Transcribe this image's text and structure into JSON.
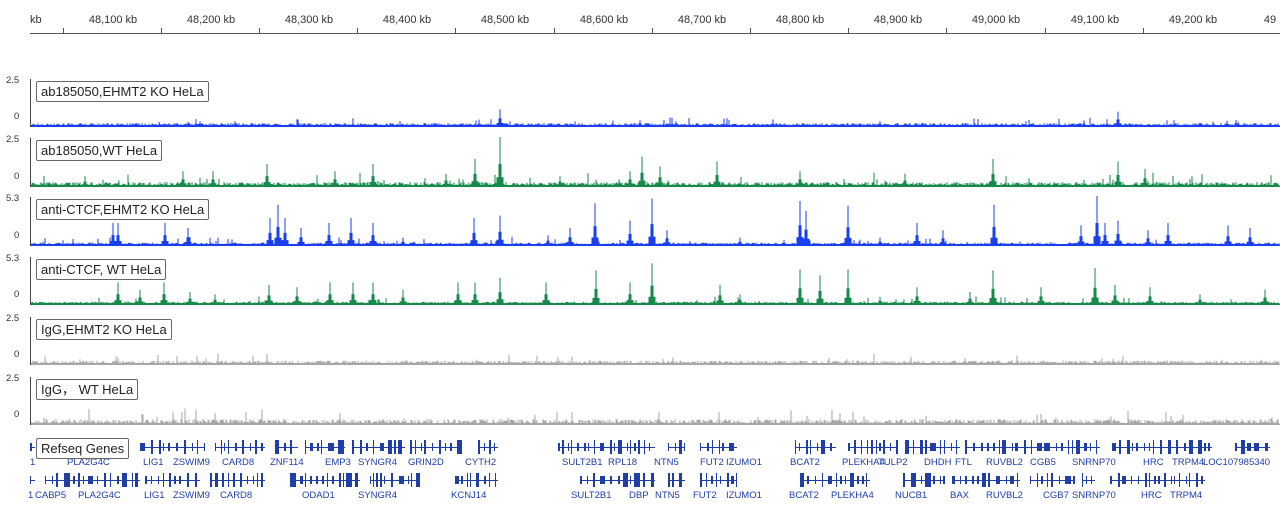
{
  "colors": {
    "blue": "#1a3ff0",
    "green": "#168a4a",
    "gray": "#a6a6a6",
    "gene": "#1f3ea8"
  },
  "ruler": {
    "labels": [
      "kb",
      "48,100 kb",
      "48,200 kb",
      "48,300 kb",
      "48,400 kb",
      "48,500 kb",
      "48,600 kb",
      "48,700 kb",
      "48,800 kb",
      "48,900 kb",
      "49,000 kb",
      "49,100 kb",
      "49,200 kb",
      "49"
    ]
  },
  "tracks": [
    {
      "label": "ab185050,EHMT2 KO HeLa",
      "scale_max": "2.5",
      "scale_min": "0",
      "color": "blue"
    },
    {
      "label": "ab185050,WT HeLa",
      "scale_max": "2.5",
      "scale_min": "0",
      "color": "green"
    },
    {
      "label": "anti-CTCF,EHMT2 KO HeLa",
      "scale_max": "5.3",
      "scale_min": "0",
      "color": "blue"
    },
    {
      "label": "anti-CTCF, WT HeLa",
      "scale_max": "5.3",
      "scale_min": "0",
      "color": "green"
    },
    {
      "label": "IgG,EHMT2 KO HeLa",
      "scale_max": "2.5",
      "scale_min": "0",
      "color": "gray"
    },
    {
      "label": "IgG， WT HeLa",
      "scale_max": "2.5",
      "scale_min": "0",
      "color": "gray"
    }
  ],
  "genes": {
    "label": "Refseq Genes",
    "row1": [
      "1",
      "PLA2G4C",
      "LIG1",
      "ZSWIM9",
      "CARD8",
      "ZNF114",
      "EMP3",
      "SYNGR4",
      "GRIN2D",
      "CYTH2",
      "SULT2B1",
      "RPL18",
      "NTN5",
      "FUT2",
      "IZUMO1",
      "BCAT2",
      "PLEKHA4",
      "TULP2",
      "DHDH",
      "FTL",
      "RUVBL2",
      "CGB5",
      "SNRNP70",
      "HRC",
      "TRPM4",
      "LOC107985340"
    ],
    "row2": [
      "1",
      "CABP5",
      "PLA2G4C",
      "LIG1",
      "ZSWIM9",
      "CARD8",
      "ODAD1",
      "SYNGR4",
      "KCNJ14",
      "SULT2B1",
      "DBP",
      "NTN5",
      "FUT2",
      "IZUMO1",
      "BCAT2",
      "PLEKHA4",
      "NUCB1",
      "BAX",
      "RUVBL2",
      "CGB7",
      "SNRNP70",
      "HRC",
      "TRPM4"
    ]
  }
}
